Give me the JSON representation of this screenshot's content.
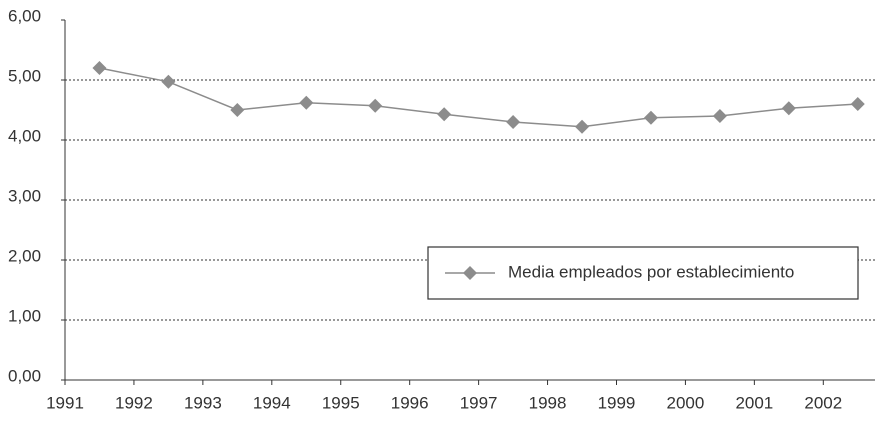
{
  "chart_data": {
    "type": "line",
    "x": [
      1991.5,
      1992.5,
      1993.5,
      1994.5,
      1995.5,
      1996.5,
      1997.5,
      1998.5,
      1999.5,
      2000.5,
      2001.5,
      2002.5
    ],
    "series": [
      {
        "name": "Media empleados por establecimiento",
        "color": "#8c8c8c",
        "values": [
          5.2,
          4.97,
          4.5,
          4.62,
          4.57,
          4.43,
          4.3,
          4.22,
          4.37,
          4.4,
          4.53,
          4.6
        ]
      }
    ],
    "xlim": [
      1991,
      2002.75
    ],
    "xticks": [
      1991,
      1992,
      1993,
      1994,
      1995,
      1996,
      1997,
      1998,
      1999,
      2000,
      2001,
      2002
    ],
    "ylim": [
      0,
      6
    ],
    "yticks": [
      {
        "value": 0,
        "label": "0,00"
      },
      {
        "value": 1,
        "label": "1,00"
      },
      {
        "value": 2,
        "label": "2,00"
      },
      {
        "value": 3,
        "label": "3,00"
      },
      {
        "value": 4,
        "label": "4,00"
      },
      {
        "value": 5,
        "label": "5,00"
      },
      {
        "value": 6,
        "label": "6,00"
      }
    ],
    "grid": true,
    "legend": "lower-right"
  }
}
